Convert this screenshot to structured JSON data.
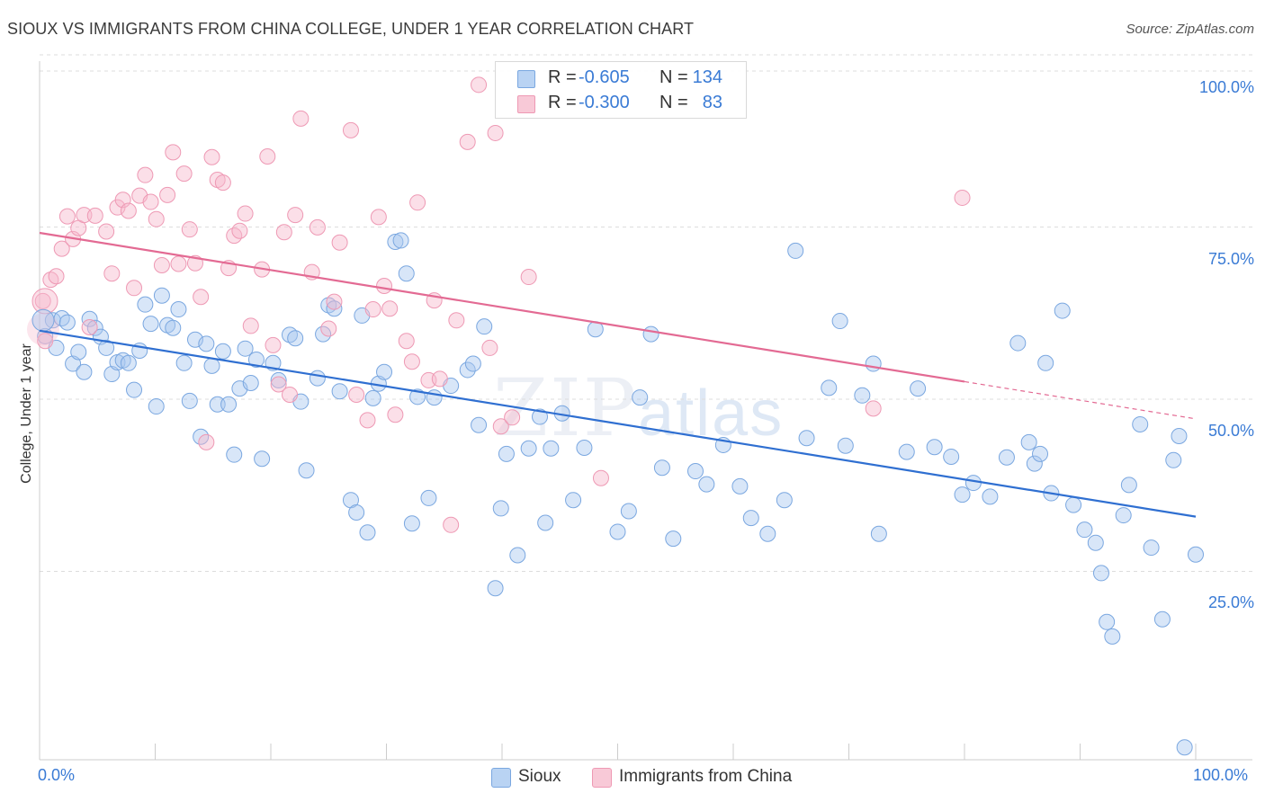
{
  "header": {
    "title": "SIOUX VS IMMIGRANTS FROM CHINA COLLEGE, UNDER 1 YEAR CORRELATION CHART",
    "source": "Source: ZipAtlas.com"
  },
  "watermark": {
    "zip": "ZIP",
    "atlas": "atlas"
  },
  "legend": {
    "rows": [
      {
        "r_label": "R =",
        "r_value": "-0.605",
        "n_label": "N =",
        "n_value": "134",
        "color": "#a9c8f0"
      },
      {
        "r_label": "R =",
        "r_value": "-0.300",
        "n_label": "N =",
        "n_value": "83",
        "color": "#f6b8cb"
      }
    ]
  },
  "bottom_legend": {
    "sioux": "Sioux",
    "china": "Immigrants from China"
  },
  "chart_data": {
    "type": "scatter",
    "title": "SIOUX VS IMMIGRANTS FROM CHINA COLLEGE, UNDER 1 YEAR CORRELATION CHART",
    "xlabel": "",
    "ylabel": "College, Under 1 year",
    "xlim": [
      0,
      100
    ],
    "ylim": [
      0,
      100
    ],
    "x_tick_labels": [
      "0.0%",
      "100.0%"
    ],
    "y_tick_labels": [
      "100.0%",
      "75.0%",
      "50.0%",
      "25.0%"
    ],
    "y_tick_values": [
      100,
      75,
      50,
      25
    ],
    "colors": {
      "sioux": "#3a7bd5",
      "china": "#e8729a",
      "sioux_fill": "#a9c8f0",
      "china_fill": "#f6b8cb"
    },
    "series": [
      {
        "name": "Sioux",
        "R": -0.605,
        "N": 134,
        "trend": {
          "x0": 0,
          "y0": 62.3,
          "x1": 100,
          "y1": 35.3
        },
        "points": [
          [
            0.5,
            61.5
          ],
          [
            1.2,
            63.8
          ],
          [
            1.5,
            59.8
          ],
          [
            2,
            64.1
          ],
          [
            2.5,
            63.5
          ],
          [
            3,
            57.5
          ],
          [
            3.5,
            59.2
          ],
          [
            4,
            56.3
          ],
          [
            4.5,
            64
          ],
          [
            5,
            62.7
          ],
          [
            5.5,
            61.4
          ],
          [
            6,
            59.8
          ],
          [
            6.5,
            56
          ],
          [
            7,
            57.7
          ],
          [
            7.5,
            58
          ],
          [
            8,
            57.6
          ],
          [
            8.5,
            53.7
          ],
          [
            9,
            59.4
          ],
          [
            9.5,
            66.1
          ],
          [
            10,
            63.3
          ],
          [
            10.5,
            51.3
          ],
          [
            11,
            67.4
          ],
          [
            11.5,
            63.1
          ],
          [
            12,
            62.7
          ],
          [
            12.5,
            65.4
          ],
          [
            13,
            57.6
          ],
          [
            13.5,
            52.1
          ],
          [
            14,
            61
          ],
          [
            14.5,
            46.9
          ],
          [
            15,
            60.4
          ],
          [
            15.5,
            57.2
          ],
          [
            16,
            51.6
          ],
          [
            16.5,
            59.3
          ],
          [
            17,
            51.6
          ],
          [
            17.5,
            44.3
          ],
          [
            18,
            53.9
          ],
          [
            18.5,
            59.7
          ],
          [
            19,
            54.7
          ],
          [
            19.5,
            58.1
          ],
          [
            20,
            43.7
          ],
          [
            21,
            57.6
          ],
          [
            21.5,
            55.1
          ],
          [
            22.5,
            61.7
          ],
          [
            23,
            61.2
          ],
          [
            23.5,
            52
          ],
          [
            24,
            42
          ],
          [
            25,
            55.4
          ],
          [
            25.5,
            61.8
          ],
          [
            26,
            66
          ],
          [
            26.5,
            65.5
          ],
          [
            27,
            53.5
          ],
          [
            28,
            37.7
          ],
          [
            28.5,
            35.9
          ],
          [
            29,
            64.5
          ],
          [
            29.5,
            33
          ],
          [
            30,
            52.5
          ],
          [
            30.5,
            54.6
          ],
          [
            31,
            56.3
          ],
          [
            32,
            75.2
          ],
          [
            32.5,
            75.4
          ],
          [
            33,
            70.6
          ],
          [
            33.5,
            34.3
          ],
          [
            34,
            52.7
          ],
          [
            35,
            38
          ],
          [
            35.5,
            52.6
          ],
          [
            37,
            54.3
          ],
          [
            38.5,
            56.6
          ],
          [
            39,
            57.5
          ],
          [
            39.5,
            48.6
          ],
          [
            40,
            62.9
          ],
          [
            41,
            24.9
          ],
          [
            41.5,
            36.5
          ],
          [
            42,
            44.4
          ],
          [
            43,
            29.7
          ],
          [
            44,
            45.2
          ],
          [
            45,
            49.8
          ],
          [
            45.5,
            34.4
          ],
          [
            46,
            45.2
          ],
          [
            47,
            50.3
          ],
          [
            48,
            37.7
          ],
          [
            49,
            45.3
          ],
          [
            50,
            62.5
          ],
          [
            52,
            33.1
          ],
          [
            53,
            36.1
          ],
          [
            54,
            52.6
          ],
          [
            55,
            61.8
          ],
          [
            56,
            42.4
          ],
          [
            57,
            32.1
          ],
          [
            59,
            41.9
          ],
          [
            60,
            40
          ],
          [
            61.5,
            45.7
          ],
          [
            63,
            39.7
          ],
          [
            64,
            35.1
          ],
          [
            65.5,
            32.8
          ],
          [
            67,
            37.7
          ],
          [
            68,
            73.9
          ],
          [
            69,
            46.7
          ],
          [
            71,
            54
          ],
          [
            72,
            63.7
          ],
          [
            72.5,
            45.6
          ],
          [
            74,
            52.9
          ],
          [
            75,
            57.5
          ],
          [
            75.5,
            32.8
          ],
          [
            78,
            44.7
          ],
          [
            79,
            53.9
          ],
          [
            80.5,
            45.4
          ],
          [
            82,
            44
          ],
          [
            83,
            38.5
          ],
          [
            84,
            40.2
          ],
          [
            85.5,
            38.2
          ],
          [
            87,
            43.9
          ],
          [
            88,
            60.5
          ],
          [
            89,
            46.1
          ],
          [
            89.5,
            43
          ],
          [
            90,
            44.4
          ],
          [
            90.5,
            57.6
          ],
          [
            91,
            38.7
          ],
          [
            92,
            65.2
          ],
          [
            93,
            37
          ],
          [
            94,
            33.4
          ],
          [
            95,
            31.5
          ],
          [
            95.5,
            27.1
          ],
          [
            96,
            20
          ],
          [
            96.5,
            17.9
          ],
          [
            97.5,
            35.5
          ],
          [
            98,
            39.9
          ],
          [
            99,
            48.7
          ],
          [
            100,
            30.8
          ],
          [
            101,
            20.4
          ],
          [
            102,
            43.5
          ],
          [
            102.5,
            47
          ],
          [
            103,
            1.8
          ],
          [
            104,
            29.8
          ]
        ]
      },
      {
        "name": "Immigrants from China",
        "R": -0.3,
        "N": 83,
        "trend": {
          "x0": 0,
          "y0": 76.5,
          "x1": 80,
          "y1": 54.9,
          "dashed_to": {
            "x": 100,
            "y": 49.5
          }
        },
        "points": [
          [
            0.3,
            66.6
          ],
          [
            0.5,
            60.8
          ],
          [
            1,
            69.7
          ],
          [
            1.5,
            70.2
          ],
          [
            2,
            74.2
          ],
          [
            2.5,
            78.9
          ],
          [
            3,
            75.6
          ],
          [
            3.5,
            77.2
          ],
          [
            4,
            79.1
          ],
          [
            4.5,
            62.8
          ],
          [
            5,
            79
          ],
          [
            6,
            76.7
          ],
          [
            6.5,
            70.6
          ],
          [
            7,
            80.2
          ],
          [
            7.5,
            81.3
          ],
          [
            8,
            79.7
          ],
          [
            8.5,
            68.5
          ],
          [
            9,
            81.9
          ],
          [
            9.5,
            84.9
          ],
          [
            10,
            81
          ],
          [
            10.5,
            78.5
          ],
          [
            11,
            71.8
          ],
          [
            11.5,
            82
          ],
          [
            12,
            88.2
          ],
          [
            12.5,
            72
          ],
          [
            13,
            85.1
          ],
          [
            13.5,
            77
          ],
          [
            14,
            72.1
          ],
          [
            14.5,
            67.2
          ],
          [
            15,
            46.1
          ],
          [
            15.5,
            87.5
          ],
          [
            16,
            84.2
          ],
          [
            16.5,
            83.8
          ],
          [
            17,
            71.4
          ],
          [
            17.5,
            76.1
          ],
          [
            18,
            76.8
          ],
          [
            18.5,
            79.3
          ],
          [
            19,
            63
          ],
          [
            20,
            71.2
          ],
          [
            20.5,
            87.6
          ],
          [
            21,
            60.2
          ],
          [
            21.5,
            54.5
          ],
          [
            22,
            76.6
          ],
          [
            22.5,
            53
          ],
          [
            23,
            79.1
          ],
          [
            23.5,
            93.1
          ],
          [
            24.5,
            70.8
          ],
          [
            25,
            77.3
          ],
          [
            26,
            62.6
          ],
          [
            26.5,
            66.5
          ],
          [
            27,
            75.1
          ],
          [
            28,
            91.4
          ],
          [
            28.5,
            53
          ],
          [
            29.5,
            49.3
          ],
          [
            30,
            65.4
          ],
          [
            30.5,
            78.8
          ],
          [
            31,
            68.8
          ],
          [
            31.5,
            65.5
          ],
          [
            32,
            50.1
          ],
          [
            33,
            60.8
          ],
          [
            33.5,
            57.8
          ],
          [
            34,
            80.9
          ],
          [
            35,
            55.1
          ],
          [
            35.5,
            66.7
          ],
          [
            36,
            55.3
          ],
          [
            37,
            34.1
          ],
          [
            37.5,
            63.8
          ],
          [
            38.5,
            89.7
          ],
          [
            39.5,
            98
          ],
          [
            40.5,
            59.8
          ],
          [
            41,
            91
          ],
          [
            41.5,
            48.4
          ],
          [
            42.5,
            49.7
          ],
          [
            44,
            70.1
          ],
          [
            50.5,
            40.9
          ],
          [
            75,
            51
          ],
          [
            83,
            81.6
          ]
        ]
      }
    ]
  }
}
